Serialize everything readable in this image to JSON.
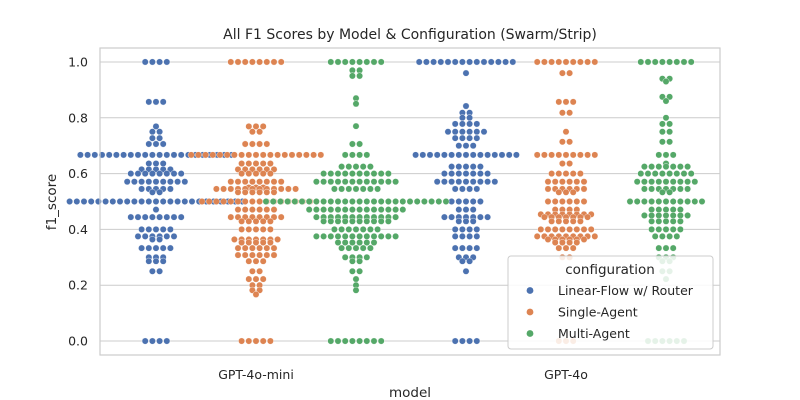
{
  "chart_data": {
    "type": "scatter",
    "subtype": "swarm",
    "title": "All F1 Scores by Model & Configuration (Swarm/Strip)",
    "xlabel": "model",
    "ylabel": "f1_score",
    "categories": [
      "GPT-4o-mini",
      "GPT-4o"
    ],
    "ylim": [
      -0.05,
      1.05
    ],
    "yticks": [
      "0.0",
      "0.2",
      "0.4",
      "0.6",
      "0.8",
      "1.0"
    ],
    "ytick_values": [
      0.0,
      0.2,
      0.4,
      0.6,
      0.8,
      1.0
    ],
    "grid": true,
    "legend": {
      "title": "configuration",
      "placement": "lower-right",
      "entries": [
        "Linear-Flow w/ Router",
        "Single-Agent",
        "Multi-Agent"
      ]
    },
    "colors": {
      "Linear-Flow w/ Router": "#4c72b0",
      "Single-Agent": "#dd8452",
      "Multi-Agent": "#55a868"
    },
    "series": [
      {
        "name": "Linear-Flow w/ Router",
        "groups": [
          {
            "category": "GPT-4o-mini",
            "counts": [
              [
                1.0,
                4
              ],
              [
                0.857,
                3
              ],
              [
                0.769,
                1
              ],
              [
                0.75,
                2
              ],
              [
                0.727,
                2
              ],
              [
                0.706,
                3
              ],
              [
                0.667,
                22
              ],
              [
                0.636,
                3
              ],
              [
                0.615,
                5
              ],
              [
                0.6,
                8
              ],
              [
                0.571,
                9
              ],
              [
                0.545,
                5
              ],
              [
                0.533,
                2
              ],
              [
                0.5,
                25
              ],
              [
                0.471,
                1
              ],
              [
                0.444,
                8
              ],
              [
                0.4,
                5
              ],
              [
                0.375,
                6
              ],
              [
                0.364,
                2
              ],
              [
                0.333,
                5
              ],
              [
                0.3,
                3
              ],
              [
                0.286,
                3
              ],
              [
                0.25,
                2
              ],
              [
                0.0,
                4
              ]
            ]
          },
          {
            "category": "GPT-4o",
            "counts": [
              [
                1.0,
                14
              ],
              [
                0.96,
                1
              ],
              [
                0.842,
                1
              ],
              [
                0.818,
                2
              ],
              [
                0.8,
                2
              ],
              [
                0.778,
                4
              ],
              [
                0.75,
                6
              ],
              [
                0.727,
                4
              ],
              [
                0.7,
                3
              ],
              [
                0.667,
                15
              ],
              [
                0.625,
                5
              ],
              [
                0.6,
                7
              ],
              [
                0.571,
                9
              ],
              [
                0.545,
                4
              ],
              [
                0.5,
                5
              ],
              [
                0.471,
                3
              ],
              [
                0.444,
                7
              ],
              [
                0.429,
                3
              ],
              [
                0.4,
                4
              ],
              [
                0.375,
                4
              ],
              [
                0.333,
                4
              ],
              [
                0.3,
                3
              ],
              [
                0.286,
                2
              ],
              [
                0.25,
                1
              ],
              [
                0.0,
                4
              ]
            ]
          }
        ]
      },
      {
        "name": "Single-Agent",
        "groups": [
          {
            "category": "GPT-4o-mini",
            "counts": [
              [
                1.0,
                8
              ],
              [
                0.769,
                3
              ],
              [
                0.75,
                2
              ],
              [
                0.706,
                4
              ],
              [
                0.667,
                19
              ],
              [
                0.636,
                5
              ],
              [
                0.615,
                6
              ],
              [
                0.6,
                5
              ],
              [
                0.571,
                8
              ],
              [
                0.55,
                3
              ],
              [
                0.545,
                12
              ],
              [
                0.533,
                6
              ],
              [
                0.5,
                16
              ],
              [
                0.471,
                6
              ],
              [
                0.444,
                8
              ],
              [
                0.429,
                5
              ],
              [
                0.4,
                5
              ],
              [
                0.364,
                7
              ],
              [
                0.353,
                5
              ],
              [
                0.333,
                6
              ],
              [
                0.308,
                6
              ],
              [
                0.286,
                3
              ],
              [
                0.25,
                2
              ],
              [
                0.222,
                3
              ],
              [
                0.2,
                2
              ],
              [
                0.182,
                2
              ],
              [
                0.167,
                1
              ],
              [
                0.0,
                5
              ]
            ]
          },
          {
            "category": "GPT-4o",
            "counts": [
              [
                1.0,
                9
              ],
              [
                0.96,
                2
              ],
              [
                0.857,
                3
              ],
              [
                0.818,
                2
              ],
              [
                0.75,
                1
              ],
              [
                0.714,
                2
              ],
              [
                0.667,
                9
              ],
              [
                0.636,
                2
              ],
              [
                0.6,
                5
              ],
              [
                0.571,
                6
              ],
              [
                0.545,
                6
              ],
              [
                0.533,
                3
              ],
              [
                0.5,
                6
              ],
              [
                0.471,
                4
              ],
              [
                0.454,
                8
              ],
              [
                0.444,
                7
              ],
              [
                0.429,
                5
              ],
              [
                0.4,
                8
              ],
              [
                0.375,
                9
              ],
              [
                0.364,
                6
              ],
              [
                0.353,
                4
              ],
              [
                0.333,
                3
              ],
              [
                0.3,
                2
              ],
              [
                0.0,
                3
              ]
            ]
          }
        ]
      },
      {
        "name": "Multi-Agent",
        "groups": [
          {
            "category": "GPT-4o-mini",
            "counts": [
              [
                1.0,
                8
              ],
              [
                0.97,
                2
              ],
              [
                0.95,
                2
              ],
              [
                0.87,
                1
              ],
              [
                0.85,
                1
              ],
              [
                0.77,
                1
              ],
              [
                0.706,
                2
              ],
              [
                0.667,
                4
              ],
              [
                0.625,
                5
              ],
              [
                0.6,
                10
              ],
              [
                0.571,
                12
              ],
              [
                0.545,
                7
              ],
              [
                0.5,
                26
              ],
              [
                0.471,
                14
              ],
              [
                0.444,
                12
              ],
              [
                0.429,
                10
              ],
              [
                0.4,
                7
              ],
              [
                0.375,
                12
              ],
              [
                0.353,
                6
              ],
              [
                0.333,
                5
              ],
              [
                0.3,
                4
              ],
              [
                0.286,
                2
              ],
              [
                0.25,
                2
              ],
              [
                0.222,
                1
              ],
              [
                0.2,
                1
              ],
              [
                0.182,
                1
              ],
              [
                0.0,
                8
              ]
            ]
          },
          {
            "category": "GPT-4o",
            "counts": [
              [
                1.0,
                8
              ],
              [
                0.94,
                2
              ],
              [
                0.93,
                1
              ],
              [
                0.875,
                2
              ],
              [
                0.86,
                1
              ],
              [
                0.8,
                1
              ],
              [
                0.778,
                2
              ],
              [
                0.75,
                2
              ],
              [
                0.714,
                2
              ],
              [
                0.667,
                3
              ],
              [
                0.636,
                1
              ],
              [
                0.625,
                7
              ],
              [
                0.6,
                8
              ],
              [
                0.571,
                9
              ],
              [
                0.545,
                7
              ],
              [
                0.533,
                2
              ],
              [
                0.5,
                11
              ],
              [
                0.471,
                5
              ],
              [
                0.45,
                7
              ],
              [
                0.429,
                5
              ],
              [
                0.4,
                5
              ],
              [
                0.375,
                4
              ],
              [
                0.333,
                3
              ],
              [
                0.3,
                3
              ],
              [
                0.286,
                2
              ],
              [
                0.25,
                2
              ],
              [
                0.222,
                1
              ],
              [
                0.0,
                6
              ]
            ]
          }
        ]
      }
    ]
  }
}
